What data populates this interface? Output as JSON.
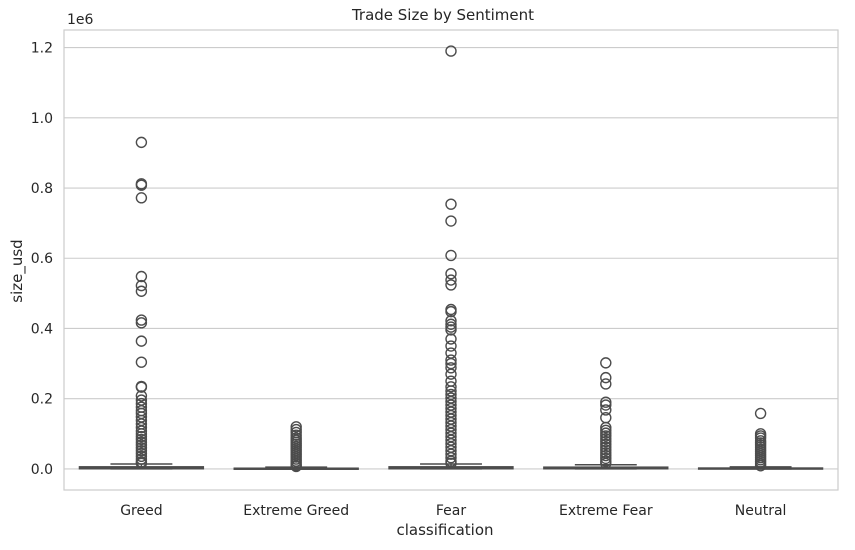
{
  "chart_data": {
    "type": "box",
    "title": "Trade Size by Sentiment",
    "xlabel": "classification",
    "ylabel": "size_usd",
    "y_offset_label": "1e6",
    "y_tick_values": [
      0.0,
      0.2,
      0.4,
      0.6,
      0.8,
      1.0,
      1.2
    ],
    "y_tick_labels": [
      "0.0",
      "0.2",
      "0.4",
      "0.6",
      "0.8",
      "1.0",
      "1.2"
    ],
    "ylim": [
      -0.06,
      1.25
    ],
    "grid": "horizontal",
    "box_color": "#4c4c4c",
    "grid_color": "#cccccc",
    "categories": [
      "Greed",
      "Extreme Greed",
      "Fear",
      "Extreme Fear",
      "Neutral"
    ],
    "boxes": [
      {
        "category": "Greed",
        "q1": 0.0005,
        "median": 0.0015,
        "q3": 0.006,
        "whisker_low": 0.0,
        "whisker_high": 0.014,
        "outliers": [
          0.93,
          0.812,
          0.808,
          0.772,
          0.548,
          0.522,
          0.506,
          0.424,
          0.416,
          0.364,
          0.304,
          0.235,
          0.233,
          0.208,
          0.196,
          0.186,
          0.176,
          0.166,
          0.158,
          0.148,
          0.138,
          0.128,
          0.118,
          0.108,
          0.1,
          0.092,
          0.084,
          0.076,
          0.068,
          0.06,
          0.052,
          0.044,
          0.036,
          0.028,
          0.02,
          0.016
        ]
      },
      {
        "category": "Extreme Greed",
        "q1": 0.0003,
        "median": 0.0008,
        "q3": 0.002,
        "whisker_low": 0.0,
        "whisker_high": 0.005,
        "outliers": [
          0.12,
          0.112,
          0.104,
          0.096,
          0.088,
          0.082,
          0.076,
          0.07,
          0.064,
          0.058,
          0.052,
          0.046,
          0.04,
          0.034,
          0.028,
          0.022,
          0.016,
          0.01,
          0.007
        ]
      },
      {
        "category": "Fear",
        "q1": 0.0005,
        "median": 0.0015,
        "q3": 0.006,
        "whisker_low": 0.0,
        "whisker_high": 0.014,
        "outliers": [
          1.19,
          0.754,
          0.706,
          0.608,
          0.556,
          0.538,
          0.524,
          0.454,
          0.448,
          0.422,
          0.412,
          0.404,
          0.396,
          0.37,
          0.35,
          0.33,
          0.31,
          0.3,
          0.288,
          0.27,
          0.25,
          0.234,
          0.222,
          0.212,
          0.202,
          0.192,
          0.182,
          0.172,
          0.162,
          0.152,
          0.142,
          0.132,
          0.122,
          0.112,
          0.102,
          0.092,
          0.082,
          0.072,
          0.062,
          0.052,
          0.042,
          0.032,
          0.022,
          0.016
        ]
      },
      {
        "category": "Extreme Fear",
        "q1": 0.0005,
        "median": 0.0012,
        "q3": 0.005,
        "whisker_low": 0.0,
        "whisker_high": 0.012,
        "outliers": [
          0.302,
          0.26,
          0.242,
          0.19,
          0.182,
          0.168,
          0.146,
          0.118,
          0.11,
          0.102,
          0.094,
          0.086,
          0.078,
          0.07,
          0.062,
          0.054,
          0.046,
          0.038,
          0.03,
          0.022,
          0.016
        ]
      },
      {
        "category": "Neutral",
        "q1": 0.0003,
        "median": 0.0008,
        "q3": 0.0025,
        "whisker_low": 0.0,
        "whisker_high": 0.006,
        "outliers": [
          0.158,
          0.1,
          0.094,
          0.088,
          0.08,
          0.074,
          0.068,
          0.062,
          0.056,
          0.05,
          0.044,
          0.038,
          0.032,
          0.026,
          0.02,
          0.014,
          0.009
        ]
      }
    ]
  }
}
